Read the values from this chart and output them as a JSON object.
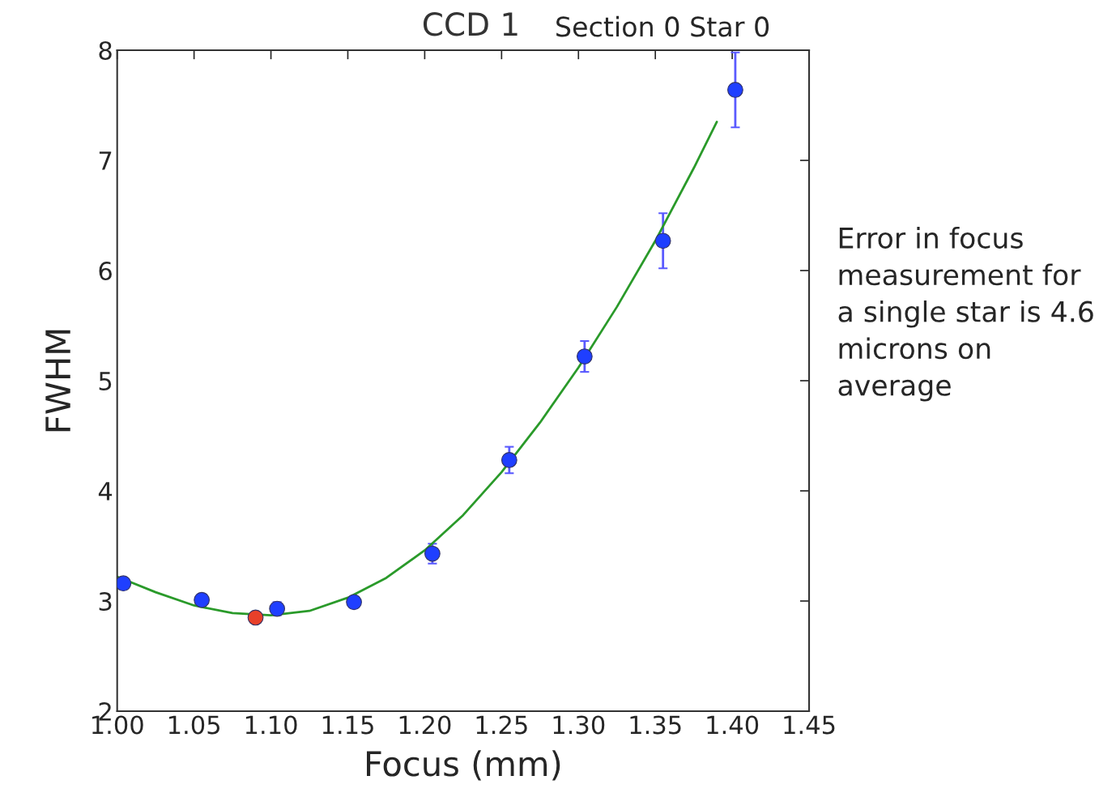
{
  "chart_data": {
    "type": "scatter",
    "title": "CCD 1",
    "subtitle": "Section 0 Star 0",
    "xlabel": "Focus (mm)",
    "ylabel": "FWHM",
    "xlim": [
      1.0,
      1.45
    ],
    "ylim": [
      2,
      8
    ],
    "xticks": [
      {
        "value": 1.0,
        "label": "1.00"
      },
      {
        "value": 1.05,
        "label": "1.05"
      },
      {
        "value": 1.1,
        "label": "1.10"
      },
      {
        "value": 1.15,
        "label": "1.15"
      },
      {
        "value": 1.2,
        "label": "1.20"
      },
      {
        "value": 1.25,
        "label": "1.25"
      },
      {
        "value": 1.3,
        "label": "1.30"
      },
      {
        "value": 1.35,
        "label": "1.35"
      },
      {
        "value": 1.4,
        "label": "1.40"
      },
      {
        "value": 1.45,
        "label": "1.45"
      }
    ],
    "yticks": [
      2,
      3,
      4,
      5,
      6,
      7,
      8
    ],
    "grid": false,
    "legend": false,
    "marker": "circle",
    "series": [
      {
        "type": "line",
        "marker": "none",
        "color": "#2a9a2a",
        "x": [
          1.0,
          1.025,
          1.05,
          1.075,
          1.1,
          1.125,
          1.15,
          1.175,
          1.2,
          1.225,
          1.25,
          1.275,
          1.3,
          1.325,
          1.35,
          1.375,
          1.39
        ],
        "values": [
          3.22,
          3.08,
          2.96,
          2.89,
          2.87,
          2.91,
          3.03,
          3.21,
          3.46,
          3.78,
          4.17,
          4.62,
          5.12,
          5.67,
          6.27,
          6.93,
          7.35
        ]
      },
      {
        "color": "#1f3fff",
        "x": [
          1.004,
          1.055,
          1.104,
          1.154,
          1.205,
          1.255,
          1.304,
          1.355,
          1.402
        ],
        "values": [
          3.16,
          3.01,
          2.93,
          2.99,
          3.43,
          4.28,
          5.22,
          6.27,
          7.64
        ],
        "errors": [
          0.05,
          0.05,
          0.06,
          0.05,
          0.09,
          0.12,
          0.14,
          0.25,
          0.34
        ]
      },
      {
        "color": "#e8402a",
        "x": [
          1.09
        ],
        "values": [
          2.85
        ]
      }
    ],
    "annotations": [
      "Error in focus\nmeasurement for\na single star is 4.6\nmicrons on\naverage"
    ]
  }
}
